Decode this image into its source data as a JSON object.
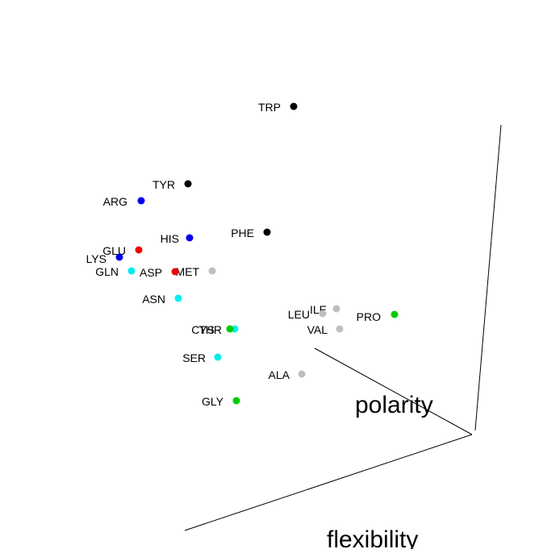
{
  "chart_data": {
    "type": "scatter",
    "projection": "3d",
    "axes": {
      "labeled": [
        "polarity",
        "flexibility"
      ]
    },
    "colors": {
      "black": "#000000",
      "blue": "#0000ee",
      "red": "#ee0000",
      "cyan": "#00eeee",
      "green": "#00cc00",
      "gray": "#bebebe"
    },
    "points": [
      {
        "label": "TRP",
        "color": "black"
      },
      {
        "label": "TYR",
        "color": "black"
      },
      {
        "label": "ARG",
        "color": "blue"
      },
      {
        "label": "HIS",
        "color": "blue"
      },
      {
        "label": "PHE",
        "color": "black"
      },
      {
        "label": "GLU",
        "color": "red"
      },
      {
        "label": "LYS",
        "color": "blue"
      },
      {
        "label": "GLN",
        "color": "cyan"
      },
      {
        "label": "ASP",
        "color": "red"
      },
      {
        "label": "MET",
        "color": "gray"
      },
      {
        "label": "ASN",
        "color": "cyan"
      },
      {
        "label": "ILE",
        "color": "gray"
      },
      {
        "label": "LEU",
        "color": "gray"
      },
      {
        "label": "PRO",
        "color": "green"
      },
      {
        "label": "VAL",
        "color": "gray"
      },
      {
        "label": "CYS",
        "color": "cyan"
      },
      {
        "label": "THR",
        "color": "green"
      },
      {
        "label": "SER",
        "color": "cyan"
      },
      {
        "label": "ALA",
        "color": "gray"
      },
      {
        "label": "GLY",
        "color": "green"
      }
    ]
  }
}
